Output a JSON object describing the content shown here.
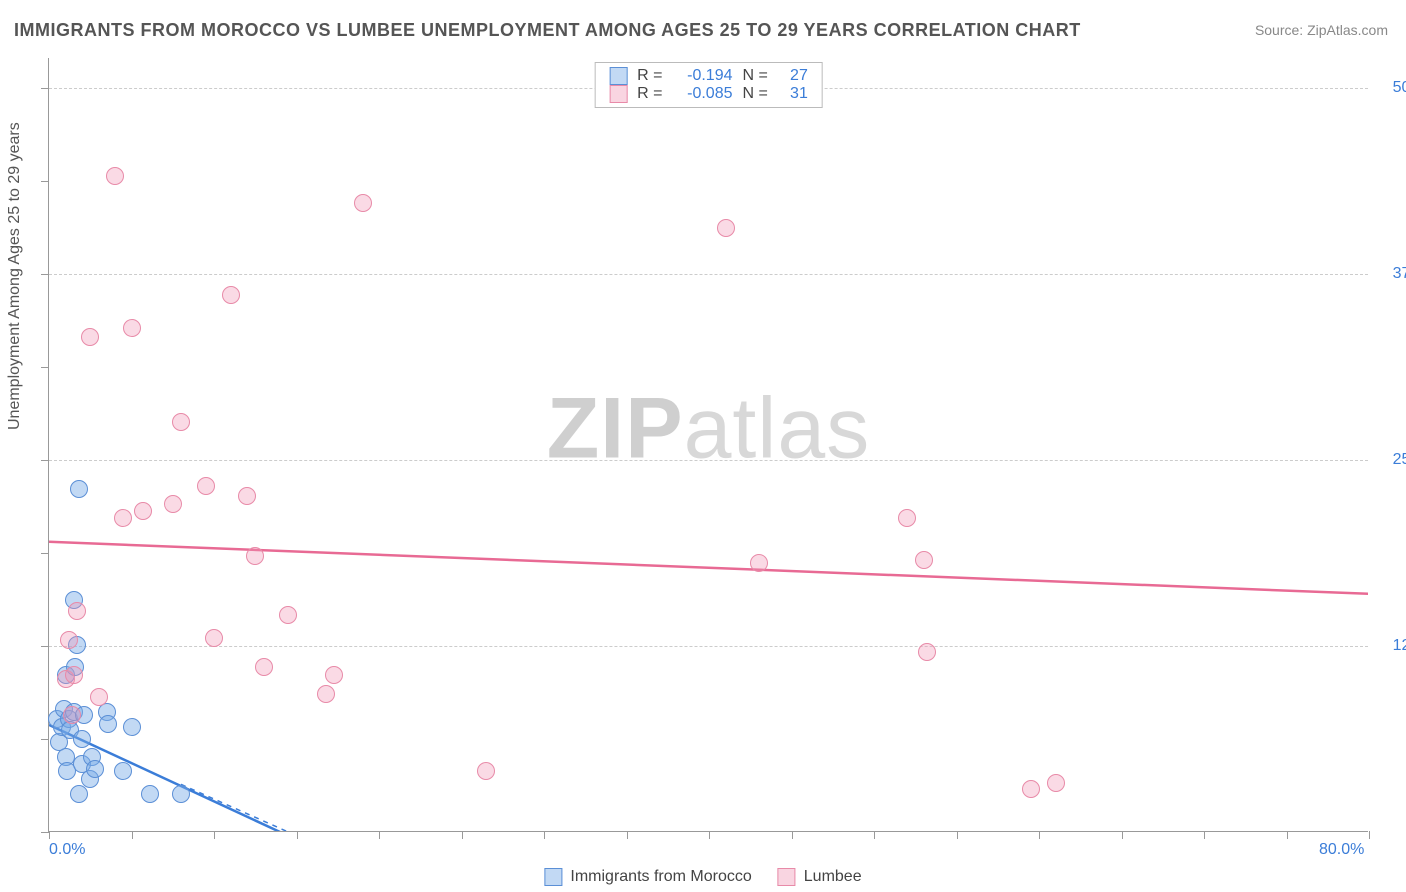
{
  "title": "IMMIGRANTS FROM MOROCCO VS LUMBEE UNEMPLOYMENT AMONG AGES 25 TO 29 YEARS CORRELATION CHART",
  "source": "Source: ZipAtlas.com",
  "ylabel": "Unemployment Among Ages 25 to 29 years",
  "watermark_a": "ZIP",
  "watermark_b": "atlas",
  "chart": {
    "type": "scatter_with_regression",
    "background_color": "#ffffff",
    "grid_color": "#cccccc",
    "axis_color": "#999999",
    "value_color": "#3b7dd8",
    "xlim": [
      0,
      80
    ],
    "ylim": [
      0,
      52
    ],
    "x_ticks": [
      0,
      5,
      10,
      15,
      20,
      25,
      30,
      35,
      40,
      45,
      50,
      55,
      60,
      65,
      70,
      75,
      80
    ],
    "y_ticks": [
      0,
      6.25,
      12.5,
      18.75,
      25,
      31.25,
      37.5,
      43.75,
      50
    ],
    "x_labels": [
      {
        "v": 0,
        "t": "0.0%"
      },
      {
        "v": 80,
        "t": "80.0%"
      }
    ],
    "y_labels": [
      {
        "v": 12.5,
        "t": "12.5%"
      },
      {
        "v": 25,
        "t": "25.0%"
      },
      {
        "v": 37.5,
        "t": "37.5%"
      },
      {
        "v": 50,
        "t": "50.0%"
      }
    ],
    "grid_y": [
      12.5,
      25,
      37.5,
      50
    ],
    "series": [
      {
        "key": "a",
        "label": "Immigrants from Morocco",
        "r": "-0.194",
        "n": "27",
        "fill": "rgba(120,170,230,0.45)",
        "stroke": "#5b8fd6",
        "reg": {
          "x1": 0,
          "y1": 7.2,
          "x2": 14,
          "y2": 0,
          "color": "#3b7dd8",
          "dash": ""
        },
        "reg_ext": {
          "x1": 8,
          "y1": 3.2,
          "x2": 14.5,
          "y2": 0,
          "color": "#3b7dd8",
          "dash": "5,5"
        },
        "points": [
          [
            0.5,
            7.5
          ],
          [
            0.6,
            6.0
          ],
          [
            0.8,
            7.0
          ],
          [
            0.9,
            8.2
          ],
          [
            1.0,
            5.0
          ],
          [
            1.0,
            10.5
          ],
          [
            1.2,
            7.5
          ],
          [
            1.1,
            4.0
          ],
          [
            1.3,
            6.8
          ],
          [
            1.5,
            15.5
          ],
          [
            1.5,
            8.0
          ],
          [
            1.6,
            11.0
          ],
          [
            1.7,
            12.5
          ],
          [
            1.8,
            2.5
          ],
          [
            1.8,
            23.0
          ],
          [
            2.0,
            4.5
          ],
          [
            2.0,
            6.2
          ],
          [
            2.1,
            7.8
          ],
          [
            2.5,
            3.5
          ],
          [
            2.6,
            5.0
          ],
          [
            2.8,
            4.2
          ],
          [
            3.5,
            8.0
          ],
          [
            3.6,
            7.2
          ],
          [
            4.5,
            4.0
          ],
          [
            5.0,
            7.0
          ],
          [
            6.1,
            2.5
          ],
          [
            8.0,
            2.5
          ]
        ]
      },
      {
        "key": "b",
        "label": "Lumbee",
        "r": "-0.085",
        "n": "31",
        "fill": "rgba(240,150,180,0.35)",
        "stroke": "#e88aa8",
        "reg": {
          "x1": 0,
          "y1": 19.5,
          "x2": 80,
          "y2": 16.0,
          "color": "#e86a94",
          "dash": ""
        },
        "points": [
          [
            1.0,
            10.2
          ],
          [
            1.2,
            12.8
          ],
          [
            1.4,
            7.8
          ],
          [
            1.5,
            10.5
          ],
          [
            1.7,
            14.8
          ],
          [
            2.5,
            33.2
          ],
          [
            3.0,
            9.0
          ],
          [
            4.0,
            44.0
          ],
          [
            4.5,
            21.0
          ],
          [
            5.0,
            33.8
          ],
          [
            5.7,
            21.5
          ],
          [
            7.5,
            22.0
          ],
          [
            8.0,
            27.5
          ],
          [
            9.5,
            23.2
          ],
          [
            10.0,
            13.0
          ],
          [
            11.0,
            36.0
          ],
          [
            12.0,
            22.5
          ],
          [
            12.5,
            18.5
          ],
          [
            13.0,
            11.0
          ],
          [
            14.5,
            14.5
          ],
          [
            16.8,
            9.2
          ],
          [
            17.3,
            10.5
          ],
          [
            19.0,
            42.2
          ],
          [
            26.5,
            4.0
          ],
          [
            41.0,
            40.5
          ],
          [
            43.0,
            18.0
          ],
          [
            52.0,
            21.0
          ],
          [
            53.0,
            18.2
          ],
          [
            53.2,
            12.0
          ],
          [
            59.5,
            2.8
          ],
          [
            61.0,
            3.2
          ]
        ]
      }
    ],
    "legend_top": {
      "r_label": "R =",
      "n_label": "N ="
    }
  }
}
